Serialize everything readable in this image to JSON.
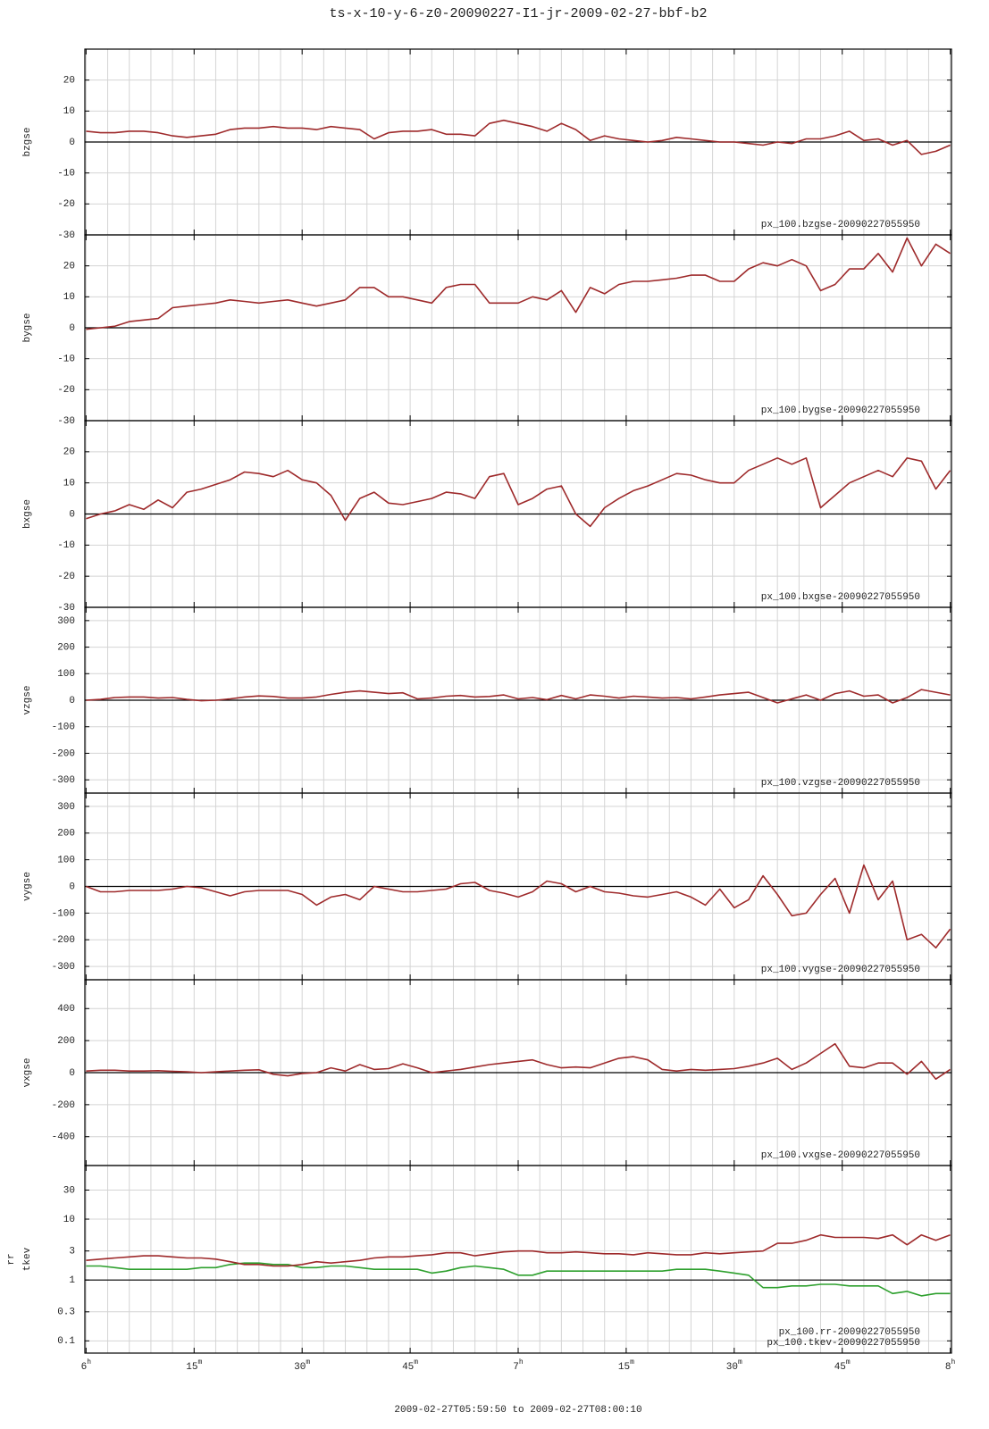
{
  "chart_data": {
    "type": "line",
    "title": "ts-x-10-y-6-z0-20090227-I1-jr-2009-02-27-bbf-b2",
    "xlabel": "2009-02-27T05:59:50 to 2009-02-27T08:00:10",
    "xlim": [
      -0.17,
      120.17
    ],
    "xticks": [
      {
        "value": 0,
        "label": "6h"
      },
      {
        "value": 15,
        "label": "15m"
      },
      {
        "value": 30,
        "label": "30m"
      },
      {
        "value": 45,
        "label": "45m"
      },
      {
        "value": 60,
        "label": "7h"
      },
      {
        "value": 75,
        "label": "15m"
      },
      {
        "value": 90,
        "label": "30m"
      },
      {
        "value": 105,
        "label": "45m"
      },
      {
        "value": 120,
        "label": "8h"
      }
    ],
    "grid": true,
    "x": [
      0,
      2,
      4,
      6,
      8,
      10,
      12,
      14,
      16,
      18,
      20,
      22,
      24,
      26,
      28,
      30,
      32,
      34,
      36,
      38,
      40,
      42,
      44,
      46,
      48,
      50,
      52,
      54,
      56,
      58,
      60,
      62,
      64,
      66,
      68,
      70,
      72,
      74,
      76,
      78,
      80,
      82,
      84,
      86,
      88,
      90,
      92,
      94,
      96,
      98,
      100,
      102,
      104,
      106,
      108,
      110,
      112,
      114,
      116,
      118,
      120
    ],
    "panels": [
      {
        "ylabel": [
          "bzgse"
        ],
        "ylim": [
          -30,
          30
        ],
        "yticks": [
          -30,
          -20,
          -10,
          0,
          10,
          20
        ],
        "log": false,
        "series": [
          {
            "name": "px_100.bzgse-20090227055950",
            "color": "#9e2a2b",
            "values": [
              3.5,
              3,
              3,
              3.5,
              3.5,
              3,
              2,
              1.5,
              2,
              2.5,
              4,
              4.5,
              4.5,
              5,
              4.5,
              4.5,
              4,
              5,
              4.5,
              4,
              1,
              3,
              3.5,
              3.5,
              4,
              2.5,
              2.5,
              2,
              6,
              7,
              6,
              5,
              3.5,
              6,
              4,
              0.5,
              2,
              1,
              0.5,
              0,
              0.5,
              1.5,
              1,
              0.5,
              0,
              0,
              -0.5,
              -1,
              0,
              -0.5,
              1,
              1,
              2,
              3.5,
              0.5,
              1,
              -1,
              0.5,
              -4,
              -3,
              -1
            ]
          }
        ]
      },
      {
        "ylabel": [
          "bygse"
        ],
        "ylim": [
          -30,
          30
        ],
        "yticks": [
          -30,
          -20,
          -10,
          0,
          10,
          20
        ],
        "log": false,
        "series": [
          {
            "name": "px_100.bygse-20090227055950",
            "color": "#9e2a2b",
            "values": [
              -0.5,
              0,
              0.5,
              2,
              2.5,
              3,
              6.5,
              7,
              7.5,
              8,
              9,
              8.5,
              8,
              8.5,
              9,
              8,
              7,
              8,
              9,
              13,
              13,
              10,
              10,
              9,
              8,
              13,
              14,
              14,
              8,
              8,
              8,
              10,
              9,
              12,
              5,
              13,
              11,
              14,
              15,
              15,
              15.5,
              16,
              17,
              17,
              15,
              15,
              19,
              21,
              20,
              22,
              20,
              12,
              14,
              19,
              19,
              24,
              18,
              29,
              20,
              27,
              24
            ]
          }
        ]
      },
      {
        "ylabel": [
          "bxgse"
        ],
        "ylim": [
          -30,
          30
        ],
        "yticks": [
          -30,
          -20,
          -10,
          0,
          10,
          20
        ],
        "log": false,
        "series": [
          {
            "name": "px_100.bxgse-20090227055950",
            "color": "#9e2a2b",
            "values": [
              -1.5,
              0,
              1,
              3,
              1.5,
              4.5,
              2,
              7,
              8,
              9.5,
              11,
              13.5,
              13,
              12,
              14,
              11,
              10,
              6,
              -2,
              5,
              7,
              3.5,
              3,
              4,
              5,
              7,
              6.5,
              5,
              12,
              13,
              3,
              5,
              8,
              9,
              0,
              -4,
              2,
              5,
              7.5,
              9,
              11,
              13,
              12.5,
              11,
              10,
              10,
              14,
              16,
              18,
              16,
              18,
              2,
              6,
              10,
              12,
              14,
              12,
              18,
              17,
              8,
              14
            ]
          }
        ]
      },
      {
        "ylabel": [
          "vzgse"
        ],
        "ylim": [
          -350,
          350
        ],
        "yticks": [
          -300,
          -200,
          -100,
          0,
          100,
          200,
          300
        ],
        "log": false,
        "series": [
          {
            "name": "px_100.vzgse-20090227055950",
            "color": "#9e2a2b",
            "values": [
              0,
              3,
              10,
              12,
              12,
              8,
              10,
              3,
              -2,
              0,
              5,
              12,
              16,
              14,
              8,
              8,
              12,
              22,
              30,
              35,
              30,
              25,
              28,
              5,
              8,
              15,
              18,
              12,
              14,
              20,
              5,
              10,
              2,
              18,
              5,
              20,
              15,
              8,
              15,
              12,
              8,
              10,
              5,
              12,
              20,
              25,
              30,
              10,
              -10,
              5,
              20,
              0,
              25,
              35,
              15,
              20,
              -10,
              10,
              40,
              30,
              20
            ]
          }
        ]
      },
      {
        "ylabel": [
          "vygse"
        ],
        "ylim": [
          -350,
          350
        ],
        "yticks": [
          -300,
          -200,
          -100,
          0,
          100,
          200,
          300
        ],
        "log": false,
        "series": [
          {
            "name": "px_100.vygse-20090227055950",
            "color": "#9e2a2b",
            "values": [
              0,
              -20,
              -20,
              -15,
              -15,
              -15,
              -10,
              0,
              -5,
              -20,
              -35,
              -20,
              -15,
              -15,
              -15,
              -30,
              -70,
              -40,
              -30,
              -50,
              0,
              -10,
              -20,
              -20,
              -15,
              -10,
              10,
              15,
              -15,
              -25,
              -40,
              -20,
              20,
              10,
              -20,
              0,
              -20,
              -25,
              -35,
              -40,
              -30,
              -20,
              -40,
              -70,
              -10,
              -80,
              -50,
              40,
              -30,
              -110,
              -100,
              -30,
              30,
              -100,
              80,
              -50,
              20,
              -200,
              -180,
              -230,
              -160
            ]
          }
        ]
      },
      {
        "ylabel": [
          "vxgse"
        ],
        "ylim": [
          -580,
          580
        ],
        "yticks": [
          -400,
          -200,
          0,
          200,
          400
        ],
        "log": false,
        "series": [
          {
            "name": "px_100.vxgse-20090227055950",
            "color": "#9e2a2b",
            "values": [
              10,
              15,
              15,
              10,
              10,
              12,
              8,
              5,
              0,
              5,
              10,
              15,
              18,
              -10,
              -20,
              -5,
              0,
              30,
              10,
              50,
              20,
              25,
              55,
              30,
              0,
              10,
              20,
              35,
              50,
              60,
              70,
              80,
              50,
              30,
              35,
              30,
              60,
              90,
              100,
              80,
              20,
              10,
              20,
              15,
              20,
              25,
              40,
              60,
              90,
              20,
              60,
              120,
              180,
              40,
              30,
              60,
              60,
              -10,
              70,
              -40,
              20
            ]
          }
        ]
      },
      {
        "ylabel": [
          "rr",
          "tkev"
        ],
        "ylim": [
          0.063,
          76
        ],
        "yticks": [
          0.1,
          0.3,
          1,
          3,
          10,
          30
        ],
        "log": true,
        "series": [
          {
            "name": "px_100.rr-20090227055950",
            "color": "#2ea02e",
            "values": [
              1.7,
              1.7,
              1.6,
              1.5,
              1.5,
              1.5,
              1.5,
              1.5,
              1.6,
              1.6,
              1.8,
              1.9,
              1.9,
              1.8,
              1.8,
              1.6,
              1.6,
              1.7,
              1.7,
              1.6,
              1.5,
              1.5,
              1.5,
              1.5,
              1.3,
              1.4,
              1.6,
              1.7,
              1.6,
              1.5,
              1.2,
              1.2,
              1.4,
              1.4,
              1.4,
              1.4,
              1.4,
              1.4,
              1.4,
              1.4,
              1.4,
              1.5,
              1.5,
              1.5,
              1.4,
              1.3,
              1.2,
              0.75,
              0.75,
              0.8,
              0.8,
              0.85,
              0.85,
              0.8,
              0.8,
              0.8,
              0.6,
              0.65,
              0.55,
              0.6,
              0.6
            ]
          },
          {
            "name": "px_100.tkev-20090227055950",
            "color": "#9e2a2b",
            "values": [
              2.1,
              2.2,
              2.3,
              2.4,
              2.5,
              2.5,
              2.4,
              2.3,
              2.3,
              2.2,
              2.0,
              1.8,
              1.8,
              1.7,
              1.7,
              1.8,
              2.0,
              1.9,
              2.0,
              2.1,
              2.3,
              2.4,
              2.4,
              2.5,
              2.6,
              2.8,
              2.8,
              2.5,
              2.7,
              2.9,
              3.0,
              3.0,
              2.8,
              2.8,
              2.9,
              2.8,
              2.7,
              2.7,
              2.6,
              2.8,
              2.7,
              2.6,
              2.6,
              2.8,
              2.7,
              2.8,
              2.9,
              3.0,
              4.0,
              4.0,
              4.5,
              5.5,
              5.0,
              5.0,
              5.0,
              4.8,
              5.5,
              3.8,
              5.5,
              4.5,
              5.5
            ]
          }
        ]
      }
    ]
  }
}
